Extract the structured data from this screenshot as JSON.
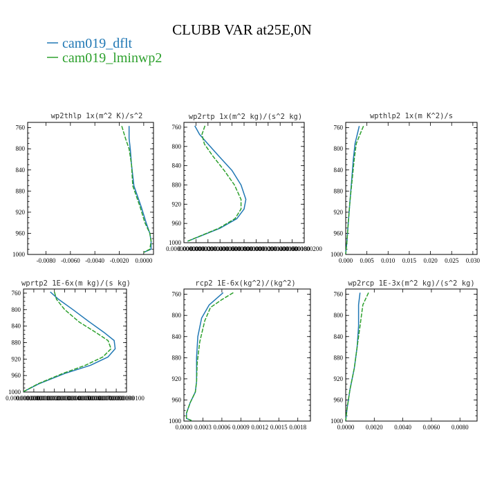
{
  "chart_data": {
    "title": "CLUBB VAR at25E,0N",
    "type": "line",
    "legend": [
      {
        "name": "cam019_dflt",
        "color": "#1f77b4",
        "dashed": false
      },
      {
        "name": "cam019_lminwp2",
        "color": "#2ca02c",
        "dashed": true
      }
    ],
    "panels": [
      {
        "title": "wp2thlp   1x(m^2 K)/s^2",
        "xlim": [
          -0.0095,
          0.0008
        ],
        "xticks": [
          -0.008,
          -0.006,
          -0.004,
          -0.002,
          0.0
        ],
        "xtick_labels": [
          "-0.0080",
          "-0.0060",
          "-0.0040",
          "-0.0020",
          "0.0000"
        ],
        "ylim": [
          750,
          1000
        ],
        "yticks": [
          760,
          800,
          840,
          880,
          920,
          960,
          1000
        ],
        "ytick_labels": [
          "760",
          "800",
          "840",
          "880",
          "920",
          "960",
          "1000"
        ],
        "series": [
          {
            "name": "cam019_dflt",
            "x": [
              -0.0012,
              -0.0012,
              -0.0011,
              -0.001,
              -0.0008,
              -0.0002,
              0.0002,
              0.0005,
              0.0006,
              0.0006,
              0.0
            ],
            "y": [
              757,
              780,
              800,
              830,
              870,
              910,
              940,
              960,
              975,
              990,
              996
            ]
          },
          {
            "name": "cam019_lminwp2",
            "x": [
              -0.0018,
              -0.0015,
              -0.0012,
              -0.001,
              -0.0009,
              -0.0003,
              0.0001,
              0.0005,
              0.0006,
              0.0005,
              0.0
            ],
            "y": [
              757,
              780,
              800,
              830,
              870,
              910,
              940,
              960,
              975,
              990,
              996
            ]
          }
        ]
      },
      {
        "title": "wp2rtp   1x(m^2 kg)/(s^2 kg)",
        "xlim": [
          0.0,
          2e-08
        ],
        "xticks": [
          0.0,
          2e-09,
          4e-09,
          6e-09,
          8e-09,
          1e-08,
          1.2e-08,
          1.4e-08,
          1.6e-08,
          1.8e-08,
          2e-08
        ],
        "xtick_labels": [
          "0.0000000000",
          "0.0000000020",
          "0.0000000040",
          "0.0000000060",
          "0.0000000080",
          "0.0000000100",
          "0.0000000120",
          "0.0000000140",
          "0.0000000160",
          "0.0000000180",
          "0.0000000200"
        ],
        "ylim": [
          750,
          1000
        ],
        "yticks": [
          760,
          800,
          840,
          880,
          920,
          960,
          1000
        ],
        "ytick_labels": [
          "760",
          "800",
          "840",
          "880",
          "920",
          "960",
          "1000"
        ],
        "series": [
          {
            "name": "cam019_dflt",
            "x": [
              1.8e-09,
              2.6e-09,
              4e-09,
              5.8e-09,
              8e-09,
              9.5e-09,
              1.03e-08,
              1e-08,
              8.8e-09,
              6e-09,
              3e-09,
              6e-10
            ],
            "y": [
              757,
              775,
              795,
              820,
              850,
              880,
              910,
              930,
              950,
              970,
              985,
              997
            ]
          },
          {
            "name": "cam019_lminwp2",
            "x": [
              3.5e-09,
              3e-09,
              3.4e-09,
              4.8e-09,
              6.7e-09,
              8.4e-09,
              9.5e-09,
              9.5e-09,
              8.5e-09,
              5.8e-09,
              2.9e-09,
              6e-10
            ],
            "y": [
              757,
              775,
              795,
              820,
              850,
              880,
              910,
              930,
              950,
              970,
              985,
              997
            ]
          }
        ]
      },
      {
        "title": "wpthlp2   1x(m K^2)/s",
        "xlim": [
          0.0,
          0.031
        ],
        "xticks": [
          0.0,
          0.005,
          0.01,
          0.015,
          0.02,
          0.025,
          0.03
        ],
        "xtick_labels": [
          "0.000",
          "0.005",
          "0.010",
          "0.015",
          "0.020",
          "0.025",
          "0.030"
        ],
        "ylim": [
          750,
          1000
        ],
        "yticks": [
          760,
          800,
          840,
          880,
          920,
          960,
          1000
        ],
        "ytick_labels": [
          "760",
          "800",
          "840",
          "880",
          "920",
          "960",
          "1000"
        ],
        "series": [
          {
            "name": "cam019_dflt",
            "x": [
              0.0032,
              0.0028,
              0.0022,
              0.0018,
              0.0014,
              0.001,
              0.0006,
              0.0003,
              0.0
            ],
            "y": [
              757,
              770,
              790,
              820,
              860,
              900,
              940,
              975,
              999
            ]
          },
          {
            "name": "cam019_lminwp2",
            "x": [
              0.0042,
              0.0035,
              0.0025,
              0.002,
              0.0015,
              0.001,
              0.0006,
              0.0003,
              0.0
            ],
            "y": [
              757,
              770,
              790,
              820,
              860,
              900,
              940,
              975,
              999
            ]
          }
        ]
      },
      {
        "title": "wprtp2   1E-6x(m kg)/(s kg)",
        "xlim": [
          0.0,
          1e-08
        ],
        "xticks": [
          0.0,
          1e-09,
          2e-09,
          3e-09,
          4e-09,
          5e-09,
          6e-09,
          7e-09,
          8e-09,
          9e-09,
          1e-08
        ],
        "xtick_labels": [
          "0.0000000000",
          "0.0000000010",
          "0.0000000020",
          "0.0000000030",
          "0.0000000040",
          "0.0000000050",
          "0.0000000060",
          "0.0000000070",
          "0.0000000080",
          "0.0000000090",
          "0.0000000100"
        ],
        "ylim": [
          750,
          1000
        ],
        "yticks": [
          760,
          800,
          840,
          880,
          920,
          960,
          1000
        ],
        "ytick_labels": [
          "760",
          "800",
          "840",
          "880",
          "920",
          "960",
          "1000"
        ],
        "series": [
          {
            "name": "cam019_dflt",
            "x": [
              2.6e-09,
              3.4e-09,
              4.8e-09,
              6.4e-09,
              7.8e-09,
              8.8e-09,
              8.9e-09,
              8.2e-09,
              6.5e-09,
              4e-09,
              1.5e-09,
              0.0
            ],
            "y": [
              757,
              775,
              800,
              830,
              855,
              875,
              895,
              915,
              935,
              955,
              980,
              999
            ]
          },
          {
            "name": "cam019_lminwp2",
            "x": [
              3e-09,
              3.2e-09,
              4e-09,
              5.4e-09,
              7e-09,
              8.2e-09,
              8.5e-09,
              7.7e-09,
              6e-09,
              3.8e-09,
              1.4e-09,
              0.0
            ],
            "y": [
              757,
              775,
              800,
              830,
              855,
              875,
              895,
              915,
              935,
              955,
              980,
              999
            ]
          }
        ]
      },
      {
        "title": "rcp2   1E-6x(kg^2)/(kg^2)",
        "xlim": [
          0.0,
          0.002
        ],
        "xticks": [
          0.0,
          0.0003,
          0.0006,
          0.0009,
          0.0012,
          0.0015,
          0.0018
        ],
        "xtick_labels": [
          "0.0000",
          "0.0003",
          "0.0006",
          "0.0009",
          "0.0012",
          "0.0015",
          "0.0018"
        ],
        "ylim": [
          750,
          1000
        ],
        "yticks": [
          760,
          800,
          840,
          880,
          920,
          960,
          1000
        ],
        "ytick_labels": [
          "760",
          "800",
          "840",
          "880",
          "920",
          "960",
          "1000"
        ],
        "series": [
          {
            "name": "cam019_dflt",
            "x": [
              0.00062,
              0.0004,
              0.00028,
              0.00022,
              0.0002,
              0.0002,
              0.0002,
              0.00018,
              0.0001,
              4e-05,
              4e-05,
              0.00012
            ],
            "y": [
              757,
              780,
              805,
              840,
              880,
              910,
              925,
              945,
              965,
              985,
              995,
              999
            ]
          },
          {
            "name": "cam019_lminwp2",
            "x": [
              0.00078,
              0.0006,
              0.00042,
              0.00033,
              0.00025,
              0.00021,
              0.0002,
              0.00018,
              0.0001,
              4e-05,
              4e-05,
              0.00012
            ],
            "y": [
              757,
              770,
              785,
              810,
              850,
              890,
              925,
              945,
              965,
              985,
              995,
              999
            ]
          }
        ]
      },
      {
        "title": "wp2rcp   1E-3x(m^2 kg)/(s^2 kg)",
        "xlim": [
          0.0,
          0.0092
        ],
        "xticks": [
          0.0,
          0.002,
          0.004,
          0.006,
          0.008
        ],
        "xtick_labels": [
          "0.0000",
          "0.0020",
          "0.0040",
          "0.0060",
          "0.0080"
        ],
        "ylim": [
          750,
          1000
        ],
        "yticks": [
          760,
          800,
          840,
          880,
          920,
          960,
          1000
        ],
        "ytick_labels": [
          "760",
          "800",
          "840",
          "880",
          "920",
          "960",
          "1000"
        ],
        "series": [
          {
            "name": "cam019_dflt",
            "x": [
              0.001,
              0.0009,
              0.0009,
              0.0008,
              0.0006,
              0.0003,
              0.0001,
              0.0
            ],
            "y": [
              757,
              780,
              820,
              860,
              900,
              940,
              975,
              999
            ]
          },
          {
            "name": "cam019_lminwp2",
            "x": [
              0.0016,
              0.0012,
              0.001,
              0.0008,
              0.0006,
              0.0003,
              0.0001,
              0.0
            ],
            "y": [
              757,
              780,
              820,
              860,
              900,
              940,
              975,
              999
            ]
          }
        ]
      }
    ]
  }
}
